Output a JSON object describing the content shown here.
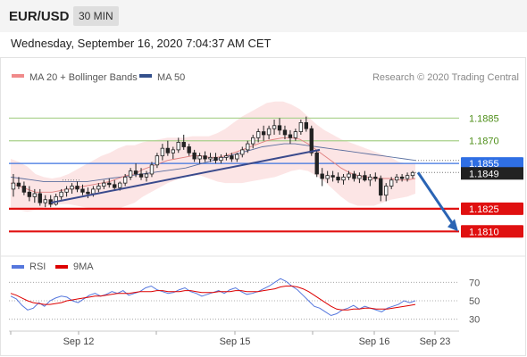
{
  "header": {
    "symbol": "EUR/USD",
    "timeframe": "30 MIN",
    "datetime": "Wednesday, September 16, 2020 7:04:37 AM CET"
  },
  "legend": {
    "items": [
      {
        "label": "MA 20 + Bollinger Bands",
        "color": "#f08a8a"
      },
      {
        "label": "MA 50",
        "color": "#34508c"
      }
    ],
    "credit": "Research © 2020 Trading Central"
  },
  "rsi_legend": {
    "items": [
      {
        "label": "RSI",
        "color": "#5577dd"
      },
      {
        "label": "9MA",
        "color": "#dd0000"
      }
    ]
  },
  "chart_data": [
    {
      "type": "line",
      "title": "EUR/USD",
      "ylim": [
        1.1796,
        1.191
      ],
      "x_labels": [
        "Sep 12",
        "Sep 15",
        "Sep 16",
        "Sep 23"
      ],
      "levels": [
        {
          "value": 1.1885,
          "label": "1.1885",
          "style": "resistance-green"
        },
        {
          "value": 1.187,
          "label": "1.1870",
          "style": "resistance-green"
        },
        {
          "value": 1.1855,
          "label": "1.1855",
          "style": "pivot-blue"
        },
        {
          "value": 1.1825,
          "label": "1.1825",
          "style": "support-red"
        },
        {
          "value": 1.181,
          "label": "1.1810",
          "style": "support-red"
        }
      ],
      "last_price": {
        "value": 1.1849,
        "label": "1.1849"
      },
      "candles": [
        [
          1.1838,
          1.1848,
          1.1833,
          1.1842
        ],
        [
          1.1842,
          1.1846,
          1.1838,
          1.184
        ],
        [
          1.184,
          1.1843,
          1.1834,
          1.1836
        ],
        [
          1.1836,
          1.184,
          1.183,
          1.1833
        ],
        [
          1.1833,
          1.1838,
          1.1829,
          1.1835
        ],
        [
          1.1835,
          1.1838,
          1.1827,
          1.1829
        ],
        [
          1.1829,
          1.1834,
          1.1826,
          1.1831
        ],
        [
          1.1831,
          1.1834,
          1.1826,
          1.1828
        ],
        [
          1.1828,
          1.1835,
          1.1827,
          1.1833
        ],
        [
          1.1833,
          1.1838,
          1.1831,
          1.1836
        ],
        [
          1.1836,
          1.184,
          1.1833,
          1.1838
        ],
        [
          1.1838,
          1.1842,
          1.1835,
          1.184
        ],
        [
          1.184,
          1.1843,
          1.1836,
          1.1838
        ],
        [
          1.1838,
          1.1841,
          1.1834,
          1.1836
        ],
        [
          1.1836,
          1.1839,
          1.1832,
          1.1835
        ],
        [
          1.1835,
          1.184,
          1.1833,
          1.1838
        ],
        [
          1.1838,
          1.1842,
          1.1836,
          1.184
        ],
        [
          1.184,
          1.1844,
          1.1838,
          1.1842
        ],
        [
          1.1842,
          1.1845,
          1.1839,
          1.1841
        ],
        [
          1.1841,
          1.1844,
          1.1837,
          1.1839
        ],
        [
          1.1839,
          1.1843,
          1.1837,
          1.1842
        ],
        [
          1.1842,
          1.1848,
          1.184,
          1.1846
        ],
        [
          1.1846,
          1.1852,
          1.1844,
          1.185
        ],
        [
          1.185,
          1.1855,
          1.1846,
          1.1848
        ],
        [
          1.1848,
          1.1852,
          1.1844,
          1.1846
        ],
        [
          1.1846,
          1.185,
          1.1843,
          1.1848
        ],
        [
          1.1848,
          1.1856,
          1.1846,
          1.1854
        ],
        [
          1.1854,
          1.1862,
          1.1852,
          1.186
        ],
        [
          1.186,
          1.1868,
          1.1857,
          1.1865
        ],
        [
          1.1865,
          1.187,
          1.186,
          1.1862
        ],
        [
          1.1862,
          1.1866,
          1.1858,
          1.1864
        ],
        [
          1.1864,
          1.1872,
          1.1862,
          1.1869
        ],
        [
          1.1869,
          1.1874,
          1.1864,
          1.1866
        ],
        [
          1.1866,
          1.1868,
          1.186,
          1.1862
        ],
        [
          1.1862,
          1.1864,
          1.1856,
          1.1858
        ],
        [
          1.1858,
          1.1862,
          1.1855,
          1.186
        ],
        [
          1.186,
          1.1863,
          1.1856,
          1.1858
        ],
        [
          1.1858,
          1.1862,
          1.1856,
          1.1859
        ],
        [
          1.1859,
          1.1862,
          1.1855,
          1.1857
        ],
        [
          1.1857,
          1.1861,
          1.1855,
          1.1859
        ],
        [
          1.1859,
          1.1862,
          1.1857,
          1.186
        ],
        [
          1.186,
          1.1862,
          1.1856,
          1.1858
        ],
        [
          1.1858,
          1.1862,
          1.1856,
          1.1861
        ],
        [
          1.1861,
          1.1866,
          1.1859,
          1.1864
        ],
        [
          1.1864,
          1.187,
          1.1862,
          1.1868
        ],
        [
          1.1868,
          1.1874,
          1.1865,
          1.1872
        ],
        [
          1.1872,
          1.1878,
          1.1869,
          1.1876
        ],
        [
          1.1876,
          1.188,
          1.187,
          1.1874
        ],
        [
          1.1874,
          1.188,
          1.1871,
          1.1878
        ],
        [
          1.1878,
          1.1884,
          1.1874,
          1.188
        ],
        [
          1.188,
          1.1885,
          1.1874,
          1.1877
        ],
        [
          1.1877,
          1.188,
          1.1871,
          1.1874
        ],
        [
          1.1874,
          1.1877,
          1.1868,
          1.1872
        ],
        [
          1.1872,
          1.1878,
          1.187,
          1.1876
        ],
        [
          1.1876,
          1.1884,
          1.1874,
          1.1882
        ],
        [
          1.1882,
          1.1886,
          1.1876,
          1.1878
        ],
        [
          1.1878,
          1.188,
          1.186,
          1.1862
        ],
        [
          1.1862,
          1.1864,
          1.1846,
          1.1848
        ],
        [
          1.1848,
          1.1852,
          1.184,
          1.1845
        ],
        [
          1.1845,
          1.185,
          1.1842,
          1.1847
        ],
        [
          1.1847,
          1.185,
          1.1843,
          1.1846
        ],
        [
          1.1846,
          1.1849,
          1.1842,
          1.1844
        ],
        [
          1.1844,
          1.1848,
          1.1841,
          1.1846
        ],
        [
          1.1846,
          1.185,
          1.1844,
          1.1848
        ],
        [
          1.1848,
          1.185,
          1.1843,
          1.1845
        ],
        [
          1.1845,
          1.1849,
          1.1842,
          1.1847
        ],
        [
          1.1847,
          1.185,
          1.1843,
          1.1844
        ],
        [
          1.1844,
          1.1848,
          1.184,
          1.1846
        ],
        [
          1.1846,
          1.1849,
          1.1843,
          1.1845
        ],
        [
          1.1845,
          1.1847,
          1.183,
          1.1834
        ],
        [
          1.1834,
          1.1842,
          1.183,
          1.184
        ],
        [
          1.184,
          1.1846,
          1.1838,
          1.1844
        ],
        [
          1.1844,
          1.1848,
          1.1842,
          1.1846
        ],
        [
          1.1846,
          1.1848,
          1.1843,
          1.1845
        ],
        [
          1.1845,
          1.1849,
          1.1843,
          1.1847
        ],
        [
          1.1847,
          1.185,
          1.1845,
          1.1849
        ]
      ],
      "ma20": [
        1.1842,
        1.184,
        1.1838,
        1.1836,
        1.1836,
        1.1836,
        1.1837,
        1.1838,
        1.1839,
        1.184,
        1.1841,
        1.1842,
        1.1843,
        1.1845,
        1.1847,
        1.1848,
        1.1851,
        1.1853,
        1.1855,
        1.1857,
        1.1858,
        1.1859,
        1.186,
        1.186,
        1.1859,
        1.1859,
        1.186,
        1.1862,
        1.1864,
        1.1866,
        1.1868,
        1.187,
        1.1871,
        1.1872,
        1.1872,
        1.1871,
        1.1868,
        1.1864,
        1.186,
        1.1856,
        1.1852,
        1.1849,
        1.1847,
        1.1846,
        1.1845,
        1.1845,
        1.1845,
        1.1844,
        1.1844,
        1.1845
      ],
      "ma50": [
        1.1846,
        1.1845,
        1.1844,
        1.1843,
        1.1843,
        1.1843,
        1.1843,
        1.1843,
        1.1844,
        1.1845,
        1.1846,
        1.1847,
        1.1848,
        1.1849,
        1.185,
        1.1851,
        1.1852,
        1.1854,
        1.1856,
        1.1858,
        1.186,
        1.1862,
        1.1864,
        1.1866,
        1.1867,
        1.1868,
        1.1868,
        1.1867,
        1.1866,
        1.1865,
        1.1864,
        1.1863,
        1.1862,
        1.1861,
        1.186,
        1.1859,
        1.1858,
        1.1857
      ]
    },
    {
      "type": "line",
      "title": "RSI",
      "ylim": [
        20,
        80
      ],
      "ticks": [
        70,
        50,
        30
      ],
      "rsi": [
        55,
        52,
        45,
        40,
        42,
        48,
        44,
        50,
        53,
        55,
        54,
        50,
        48,
        52,
        56,
        58,
        55,
        57,
        60,
        58,
        61,
        56,
        58,
        60,
        64,
        66,
        62,
        60,
        58,
        59,
        62,
        64,
        60,
        58,
        55,
        57,
        59,
        61,
        58,
        62,
        64,
        60,
        57,
        58,
        60,
        63,
        66,
        70,
        74,
        71,
        66,
        62,
        56,
        50,
        44,
        42,
        38,
        34,
        36,
        40,
        42,
        45,
        41,
        44,
        42,
        40,
        38,
        42,
        44,
        46,
        50,
        48,
        50
      ],
      "ma9": [
        58,
        56,
        53,
        50,
        48,
        47,
        46,
        46,
        47,
        48,
        50,
        51,
        52,
        53,
        54,
        55,
        55,
        56,
        57,
        58,
        58,
        58,
        59,
        60,
        60,
        60,
        61,
        61,
        60,
        60,
        60,
        61,
        61,
        60,
        59,
        59,
        59,
        60,
        60,
        60,
        61,
        61,
        60,
        60,
        60,
        61,
        62,
        63,
        65,
        66,
        66,
        65,
        63,
        60,
        56,
        52,
        48,
        44,
        41,
        40,
        40,
        41,
        41,
        42,
        42,
        41,
        41,
        41,
        42,
        43,
        44,
        45,
        46
      ]
    }
  ]
}
